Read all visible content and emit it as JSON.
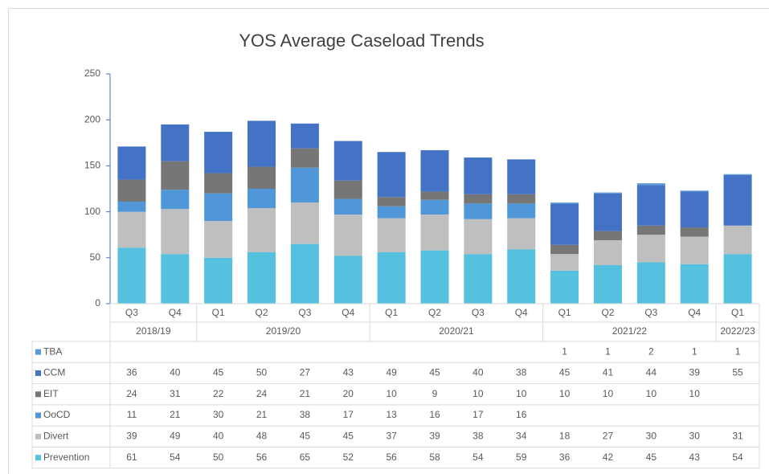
{
  "chart_data": {
    "type": "bar",
    "stacked": true,
    "title": "YOS Average Caseload Trends",
    "groups": [
      {
        "label": "2018/19",
        "categories": [
          "Q3",
          "Q4"
        ]
      },
      {
        "label": "2019/20",
        "categories": [
          "Q1",
          "Q2",
          "Q3",
          "Q4"
        ]
      },
      {
        "label": "2020/21",
        "categories": [
          "Q1",
          "Q2",
          "Q3",
          "Q4"
        ]
      },
      {
        "label": "2021/22",
        "categories": [
          "Q1",
          "Q2",
          "Q3",
          "Q4"
        ]
      },
      {
        "label": "2022/23",
        "categories": [
          "Q1"
        ]
      }
    ],
    "series": [
      {
        "name": "Prevention",
        "color": "#56c1de",
        "values": [
          61,
          54,
          50,
          56,
          65,
          52,
          56,
          58,
          54,
          59,
          36,
          42,
          45,
          43,
          54
        ]
      },
      {
        "name": "Divert",
        "color": "#bfbfbf",
        "values": [
          39,
          49,
          40,
          48,
          45,
          45,
          37,
          39,
          38,
          34,
          18,
          27,
          30,
          30,
          31
        ]
      },
      {
        "name": "OoCD",
        "color": "#4f97d8",
        "values": [
          11,
          21,
          30,
          21,
          38,
          17,
          13,
          16,
          17,
          16,
          null,
          null,
          null,
          null,
          null
        ]
      },
      {
        "name": "EIT",
        "color": "#767676",
        "values": [
          24,
          31,
          22,
          24,
          21,
          20,
          10,
          9,
          10,
          10,
          10,
          10,
          10,
          10,
          null
        ]
      },
      {
        "name": "CCM",
        "color": "#4472c4",
        "values": [
          36,
          40,
          45,
          50,
          27,
          43,
          49,
          45,
          40,
          38,
          45,
          41,
          44,
          39,
          55
        ]
      },
      {
        "name": "TBA",
        "color": "#5b9bd5",
        "values": [
          null,
          null,
          null,
          null,
          null,
          null,
          null,
          null,
          null,
          null,
          1,
          1,
          2,
          1,
          1
        ]
      }
    ],
    "ylim": [
      0,
      250
    ],
    "yticks": [
      0,
      50,
      100,
      150,
      200,
      250
    ],
    "grid": false
  }
}
